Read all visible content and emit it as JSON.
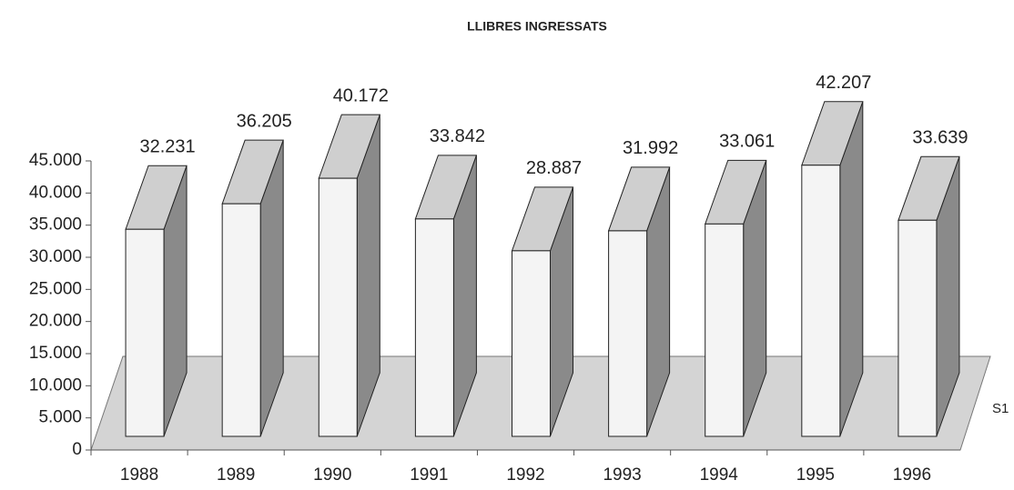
{
  "chart_data": {
    "type": "bar3d",
    "title": "LLIBRES INGRESSATS",
    "categories": [
      "1988",
      "1989",
      "1990",
      "1991",
      "1992",
      "1993",
      "1994",
      "1995",
      "1996"
    ],
    "series": [
      {
        "name": "S1",
        "color": "#f4f4f4",
        "values": [
          32231,
          36205,
          40172,
          33842,
          28887,
          31992,
          33061,
          42207,
          33639
        ],
        "value_labels": [
          "32.231",
          "36.205",
          "40.172",
          "33.842",
          "28.887",
          "31.992",
          "33.061",
          "42.207",
          "33.639"
        ]
      }
    ],
    "ylim": [
      0,
      45000
    ],
    "yticks": [
      0,
      {
        "value": 5000,
        "label": "5.000"
      },
      {
        "value": 10000,
        "label": "10.000"
      },
      {
        "value": 15000,
        "label": "15.000"
      },
      {
        "value": 20000,
        "label": "20.000"
      },
      {
        "value": 25000,
        "label": "25.000"
      },
      {
        "value": 30000,
        "label": "30.000"
      },
      {
        "value": 35000,
        "label": "35.000"
      },
      {
        "value": 40000,
        "label": "40.000"
      },
      {
        "value": 45000,
        "label": "45.000"
      }
    ]
  }
}
